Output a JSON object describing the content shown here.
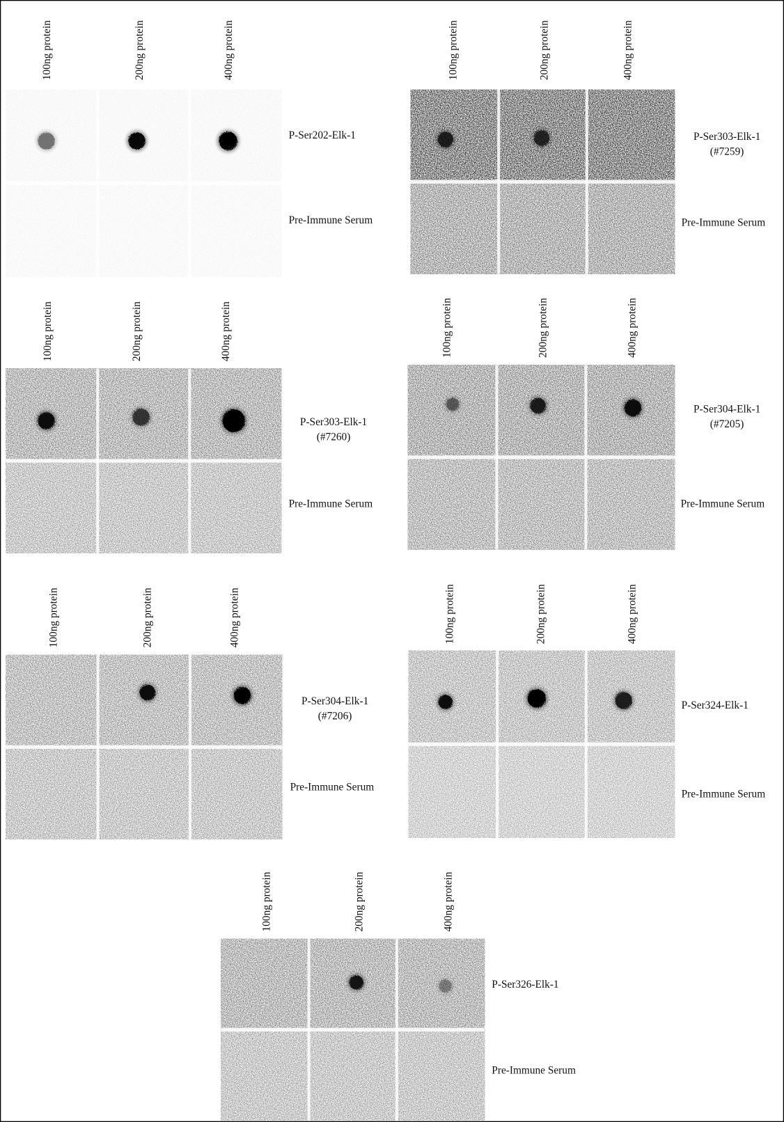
{
  "panels": [
    {
      "columns": [
        "100ng protein",
        "200ng protein",
        "400ng protein"
      ],
      "antibody": [
        "P-Ser202-Elk-1"
      ],
      "control": "Pre-Immune Serum"
    },
    {
      "columns": [
        "100ng protein",
        "200ng protein",
        "400ng protein"
      ],
      "antibody": [
        "P-Ser303-Elk-1",
        "(#7259)"
      ],
      "control": "Pre-Immune Serum"
    },
    {
      "columns": [
        "100ng protein",
        "200ng protein",
        "400ng protein"
      ],
      "antibody": [
        "P-Ser303-Elk-1",
        "(#7260)"
      ],
      "control": "Pre-Immune Serum"
    },
    {
      "columns": [
        "100ng protein",
        "200ng protein",
        "400ng protein"
      ],
      "antibody": [
        "P-Ser304-Elk-1",
        "(#7205)"
      ],
      "control": "Pre-Immune Serum"
    },
    {
      "columns": [
        "100ng protein",
        "200ng protein",
        "400ng protein"
      ],
      "antibody": [
        "P-Ser304-Elk-1",
        "(#7206)"
      ],
      "control": "Pre-Immune Serum"
    },
    {
      "columns": [
        "100ng protein",
        "200ng protein",
        "400ng protein"
      ],
      "antibody": [
        "P-Ser324-Elk-1"
      ],
      "control": "Pre-Immune Serum"
    },
    {
      "columns": [
        "100ng protein",
        "200ng protein",
        "400ng protein"
      ],
      "antibody": [
        "P-Ser326-Elk-1"
      ],
      "control": "Pre-Immune Serum"
    }
  ]
}
